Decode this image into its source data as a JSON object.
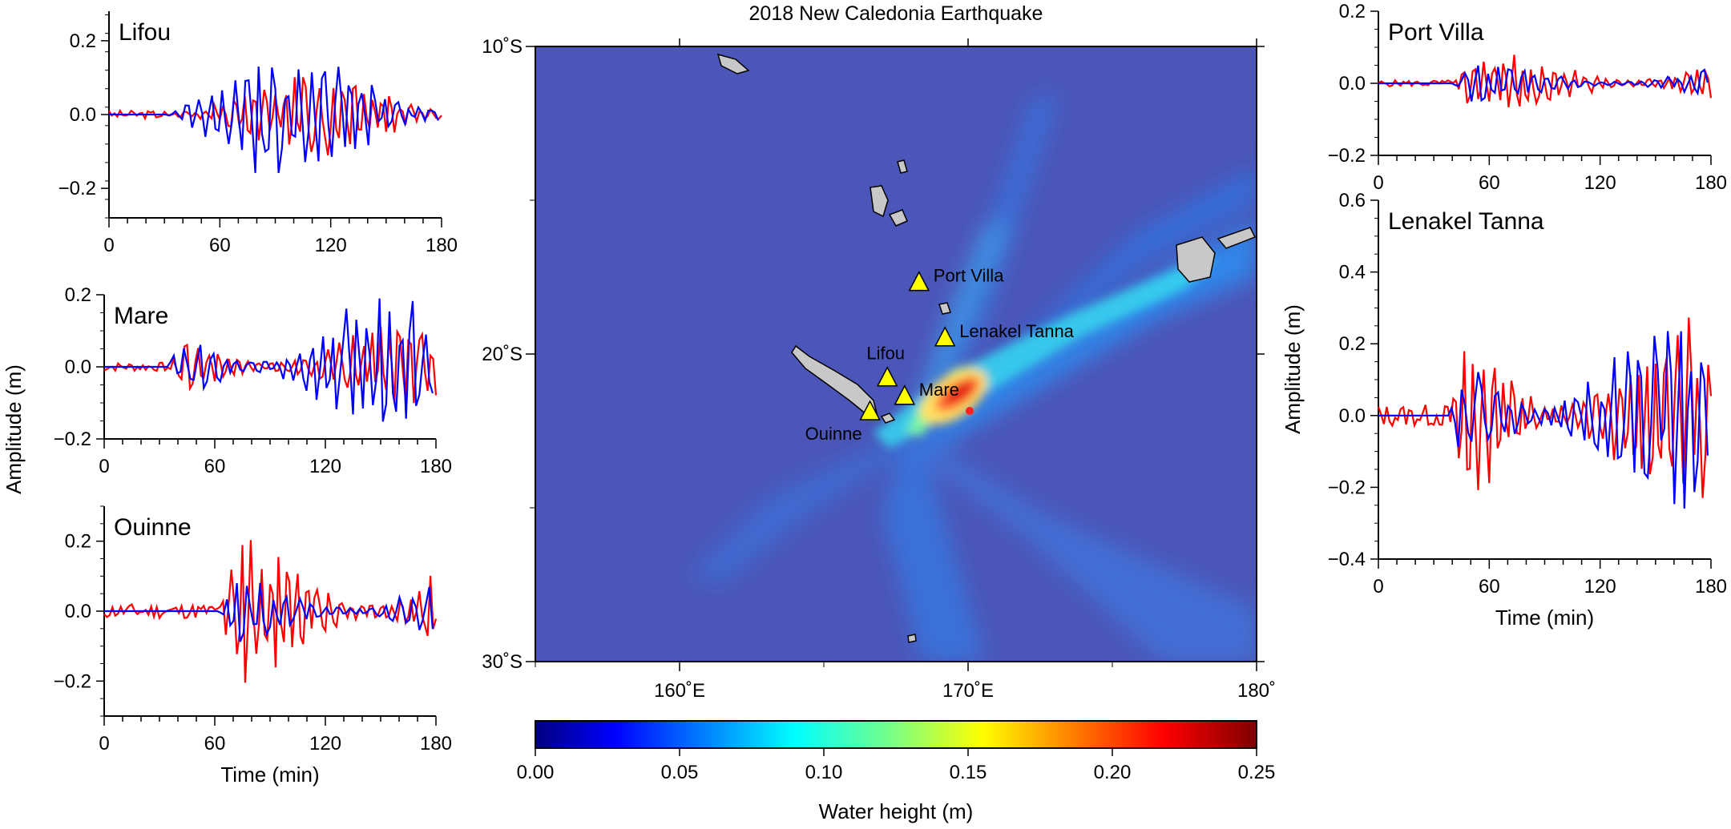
{
  "title": "2018 New Caledonia Earthquake",
  "colors": {
    "observed": "#ff0000",
    "simulated": "#0000ff",
    "ocean": "#4c56b8",
    "land": "#c8c8c8",
    "gauge": "#ffff00"
  },
  "chart_data": [
    {
      "type": "line",
      "station": "Lifou",
      "xlim": [
        0,
        180
      ],
      "ylim": [
        -0.28,
        0.28
      ],
      "xticks": [
        "0",
        "60",
        "120",
        "180"
      ],
      "yticks": [
        "0.2",
        "0.0",
        "−0.2"
      ],
      "ytick_values": [
        0.2,
        0.0,
        -0.2
      ],
      "xlabel": "",
      "ylabel": "",
      "arrival": 31,
      "amp_obs": 0.09,
      "amp_sim": 0.15,
      "seed": 3
    },
    {
      "type": "line",
      "station": "Mare",
      "xlim": [
        0,
        180
      ],
      "ylim": [
        -0.2,
        0.2
      ],
      "xticks": [
        "0",
        "60",
        "120",
        "180"
      ],
      "yticks": [
        "0.2",
        "0.0",
        "−0.2"
      ],
      "ytick_values": [
        0.2,
        0.0,
        -0.2
      ],
      "xlabel": "",
      "ylabel": "",
      "arrival": 35,
      "amp_obs": 0.1,
      "amp_sim": 0.15,
      "seed": 7
    },
    {
      "type": "line",
      "station": "Ouinne",
      "xlim": [
        0,
        180
      ],
      "ylim": [
        -0.3,
        0.3
      ],
      "xticks": [
        "0",
        "60",
        "120",
        "180"
      ],
      "yticks": [
        "0.2",
        "0.0",
        "−0.2"
      ],
      "ytick_values": [
        0.2,
        0.0,
        -0.2
      ],
      "xlabel": "Time (min)",
      "ylabel": "Amplitude (m)",
      "arrival": 62,
      "amp_obs": 0.17,
      "amp_sim": 0.08,
      "seed": 11
    },
    {
      "type": "line",
      "station": "Port Villa",
      "xlim": [
        0,
        180
      ],
      "ylim": [
        -0.2,
        0.2
      ],
      "xticks": [
        "0",
        "60",
        "120",
        "180"
      ],
      "yticks": [
        "0.2",
        "0.0",
        "−0.2"
      ],
      "ytick_values": [
        0.2,
        0.0,
        -0.2
      ],
      "xlabel": "",
      "ylabel": "",
      "arrival": 40,
      "amp_obs": 0.07,
      "amp_sim": 0.04,
      "seed": 5
    },
    {
      "type": "line",
      "station": "Lenakel Tanna",
      "xlim": [
        0,
        180
      ],
      "ylim": [
        -0.4,
        0.6
      ],
      "xticks": [
        "0",
        "60",
        "120",
        "180"
      ],
      "yticks": [
        "0.6",
        "0.4",
        "0.2",
        "0.0",
        "−0.2",
        "−0.4"
      ],
      "ytick_values": [
        0.6,
        0.4,
        0.2,
        0.0,
        -0.2,
        -0.4
      ],
      "xlabel": "Time (min)",
      "ylabel": "Amplitude (m)",
      "arrival": 38,
      "amp_obs": 0.25,
      "amp_sim": 0.22,
      "seed": 13
    },
    {
      "type": "heatmap",
      "title": "2018 New Caledonia Earthquake",
      "xlim": [
        155,
        180
      ],
      "ylim": [
        -30,
        -10
      ],
      "xticks": [
        "160˚E",
        "170˚E",
        "180˚"
      ],
      "xtick_values": [
        160,
        170,
        180
      ],
      "yticks": [
        "10˚S",
        "20˚S",
        "30˚S"
      ],
      "ytick_values": [
        -10,
        -20,
        -30
      ],
      "colorbar": {
        "label": "Water height (m)",
        "range": [
          0,
          0.25
        ],
        "ticks": [
          "0.00",
          "0.05",
          "0.10",
          "0.15",
          "0.20",
          "0.25"
        ],
        "tick_values": [
          0,
          0.05,
          0.1,
          0.15,
          0.2,
          0.25
        ]
      },
      "epicenter": {
        "lon": 170.0,
        "lat": -22.1
      },
      "gauges": [
        {
          "name": "Port Villa",
          "lon": 168.3,
          "lat": -17.7
        },
        {
          "name": "Lenakel Tanna",
          "lon": 169.2,
          "lat": -19.5
        },
        {
          "name": "Lifou",
          "lon": 167.2,
          "lat": -20.8
        },
        {
          "name": "Mare",
          "lon": 167.8,
          "lat": -21.4
        },
        {
          "name": "Ouinne",
          "lon": 166.6,
          "lat": -21.9
        }
      ]
    }
  ]
}
